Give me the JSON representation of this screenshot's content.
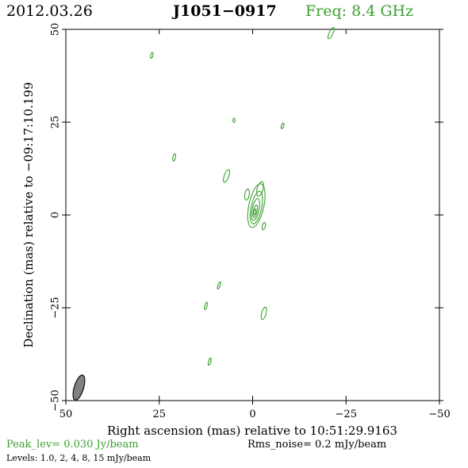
{
  "header": {
    "date": "2012.03.26",
    "source": "J1051−0917",
    "frequency": "Freq: 8.4 GHz"
  },
  "footer": {
    "peak": "Peak_lev=  0.030 Jy/beam",
    "rms": "Rms_noise=  0.2 mJy/beam",
    "levels": "Levels: 1.0,   2,   4,   8,   15 mJy/beam"
  },
  "colors": {
    "contour": "#3aa02f",
    "beam": "#808080",
    "axes": "#000000"
  },
  "chart_data": {
    "type": "contour",
    "xlabel": "Right ascension (mas) relative to 10:51:29.9163",
    "ylabel": "Declination (mas) relative to −09:17:10.199",
    "xlim": [
      50,
      -50
    ],
    "ylim": [
      -50,
      50
    ],
    "xticks": [
      50,
      25,
      0,
      -25,
      -50
    ],
    "yticks": [
      50,
      25,
      0,
      -25,
      -50
    ],
    "xtick_labels": [
      "50",
      "25",
      "0",
      "−25",
      "−50"
    ],
    "ytick_labels": [
      "50",
      "25",
      "0",
      "−25",
      "−50"
    ],
    "contour_levels_mJy": [
      1.0,
      2,
      4,
      8,
      15
    ],
    "beam": {
      "ra": 46.5,
      "dec": -46.5,
      "major_mas": 7,
      "minor_mas": 2.5,
      "pa_deg": 17
    },
    "core": [
      {
        "ra": -1.0,
        "dec": 2.5,
        "rx": 2.0,
        "ry": 6.0,
        "rot": 12
      },
      {
        "ra": -1.0,
        "dec": 2.0,
        "rx": 1.4,
        "ry": 4.5,
        "rot": 12
      },
      {
        "ra": -0.8,
        "dec": 1.5,
        "rx": 0.9,
        "ry": 3.0,
        "rot": 12
      },
      {
        "ra": -0.7,
        "dec": 1.0,
        "rx": 0.5,
        "ry": 1.7,
        "rot": 12
      },
      {
        "ra": -0.6,
        "dec": 0.8,
        "rx": 0.25,
        "ry": 0.8,
        "rot": 12
      },
      {
        "ra": 1.5,
        "dec": 5.5,
        "rx": 0.6,
        "ry": 1.5,
        "rot": 10
      },
      {
        "ra": -2.0,
        "dec": 7.0,
        "rx": 0.8,
        "ry": 2.0,
        "rot": 15
      },
      {
        "ra": -3.0,
        "dec": -3.0,
        "rx": 0.4,
        "ry": 1.0,
        "rot": 15
      }
    ],
    "blobs": [
      {
        "ra": -21.0,
        "dec": 49.0,
        "rx": 0.5,
        "ry": 1.7,
        "rot": 25
      },
      {
        "ra": 27.0,
        "dec": 43.0,
        "rx": 0.3,
        "ry": 0.8,
        "rot": 15
      },
      {
        "ra": 5.0,
        "dec": 25.5,
        "rx": 0.3,
        "ry": 0.6,
        "rot": 0
      },
      {
        "ra": -8.0,
        "dec": 24.0,
        "rx": 0.3,
        "ry": 0.8,
        "rot": 20
      },
      {
        "ra": 21.0,
        "dec": 15.5,
        "rx": 0.35,
        "ry": 1.0,
        "rot": 10
      },
      {
        "ra": 7.0,
        "dec": 10.5,
        "rx": 0.6,
        "ry": 1.8,
        "rot": 20
      },
      {
        "ra": 9.0,
        "dec": -19.0,
        "rx": 0.3,
        "ry": 1.0,
        "rot": 20
      },
      {
        "ra": 12.5,
        "dec": -24.5,
        "rx": 0.3,
        "ry": 1.0,
        "rot": 15
      },
      {
        "ra": -3.0,
        "dec": -26.5,
        "rx": 0.6,
        "ry": 1.7,
        "rot": 15
      },
      {
        "ra": 11.5,
        "dec": -39.5,
        "rx": 0.3,
        "ry": 1.0,
        "rot": 15
      }
    ]
  }
}
